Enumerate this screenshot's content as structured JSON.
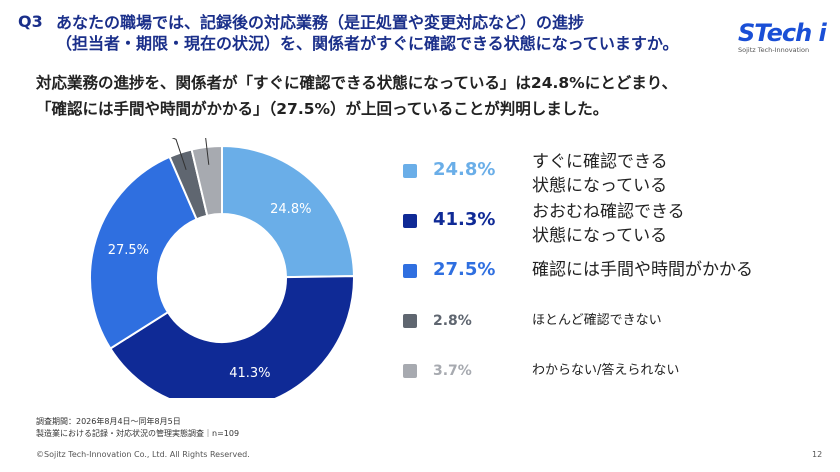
{
  "header": {
    "q_number": "Q3",
    "question_line1": "あなたの職場では、記録後の対応業務（是正処置や変更対応など）の進捗",
    "question_line2": "（担当者・期限・現在の状況）を、関係者がすぐに確認できる状態になっていますか。"
  },
  "logo": {
    "main": "STech i",
    "sub": "Sojitz Tech-Innovation"
  },
  "lead": {
    "line1": "対応業務の進捗を、関係者が「すぐに確認できる状態になっている」は24.8%にとどまり、",
    "line2": "「確認には手間や時間がかかる」（27.5%）が上回っていることが判明しました。"
  },
  "chart_data": {
    "type": "pie",
    "donut": true,
    "slices": [
      {
        "label": "すぐに確認できる状態になっている",
        "value": 24.8,
        "display": "24.8%",
        "color": "#6aaee8",
        "legend_lines": [
          "すぐに確認できる",
          "状態になっている"
        ]
      },
      {
        "label": "おおむね確認できる状態になっている",
        "value": 41.3,
        "display": "41.3%",
        "color": "#0f2a96",
        "legend_lines": [
          "おおむね確認できる",
          "状態になっている"
        ]
      },
      {
        "label": "確認には手間や時間がかかる",
        "value": 27.5,
        "display": "27.5%",
        "color": "#2f6fe0",
        "legend_lines": [
          "確認には手間や時間がかかる"
        ]
      },
      {
        "label": "ほとんど確認できない",
        "value": 2.8,
        "display": "2.8%",
        "color": "#5f6670",
        "legend_lines": [
          "ほとんど確認できない"
        ]
      },
      {
        "label": "わからない/答えられない",
        "value": 3.7,
        "display": "3.7%",
        "color": "#a7aab0",
        "legend_lines": [
          "わからない/答えられない"
        ]
      }
    ]
  },
  "survey": {
    "period": "調査期間：2026年8月4日～同年8月5日",
    "name": "製造業における記録・対応状況の管理実態調査｜n=109"
  },
  "footer": {
    "copyright": "©Sojitz Tech-Innovation Co., Ltd. All Rights Reserved.",
    "page": "12"
  }
}
